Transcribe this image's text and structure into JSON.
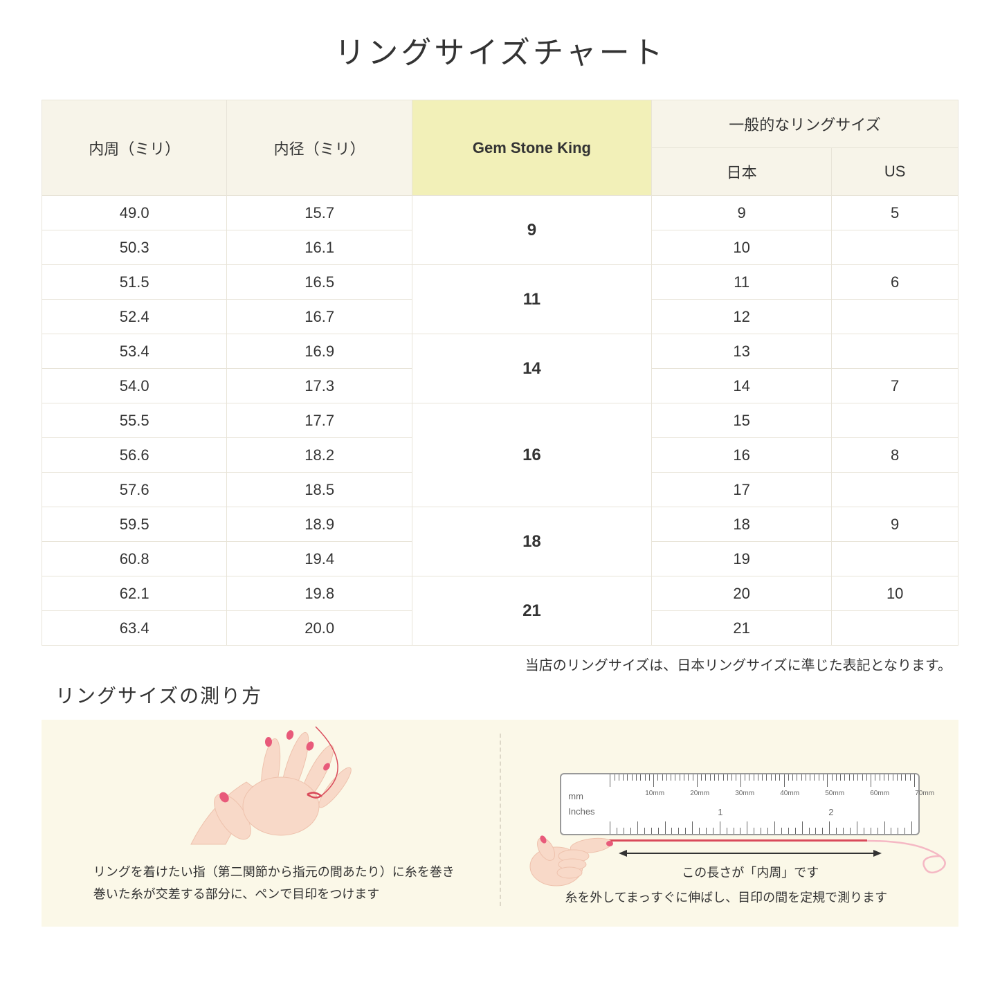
{
  "title": "リングサイズチャート",
  "headers": {
    "circumference": "内周（ミリ）",
    "diameter": "内径（ミリ）",
    "gem": "Gem Stone King",
    "general": "一般的なリングサイズ",
    "japan": "日本",
    "us": "US"
  },
  "rows": [
    {
      "c": "49.0",
      "d": "15.7",
      "jp": "9",
      "us": "5"
    },
    {
      "c": "50.3",
      "d": "16.1",
      "jp": "10",
      "us": ""
    },
    {
      "c": "51.5",
      "d": "16.5",
      "jp": "11",
      "us": "6"
    },
    {
      "c": "52.4",
      "d": "16.7",
      "jp": "12",
      "us": ""
    },
    {
      "c": "53.4",
      "d": "16.9",
      "jp": "13",
      "us": ""
    },
    {
      "c": "54.0",
      "d": "17.3",
      "jp": "14",
      "us": "7"
    },
    {
      "c": "55.5",
      "d": "17.7",
      "jp": "15",
      "us": ""
    },
    {
      "c": "56.6",
      "d": "18.2",
      "jp": "16",
      "us": "8"
    },
    {
      "c": "57.6",
      "d": "18.5",
      "jp": "17",
      "us": ""
    },
    {
      "c": "59.5",
      "d": "18.9",
      "jp": "18",
      "us": "9"
    },
    {
      "c": "60.8",
      "d": "19.4",
      "jp": "19",
      "us": ""
    },
    {
      "c": "62.1",
      "d": "19.8",
      "jp": "20",
      "us": "10"
    },
    {
      "c": "63.4",
      "d": "20.0",
      "jp": "21",
      "us": ""
    }
  ],
  "gem_groups": [
    {
      "label": "9",
      "span": 2
    },
    {
      "label": "11",
      "span": 2
    },
    {
      "label": "14",
      "span": 2
    },
    {
      "label": "16",
      "span": 3
    },
    {
      "label": "18",
      "span": 2
    },
    {
      "label": "21",
      "span": 2
    }
  ],
  "note": "当店のリングサイズは、日本リングサイズに準じた表記となります。",
  "subtitle": "リングサイズの測り方",
  "instruction_left_1": "リングを着けたい指（第二関節から指元の間あたり）に糸を巻き",
  "instruction_left_2": "巻いた糸が交差する部分に、ペンで目印をつけます",
  "arrow_label": "この長さが「内周」です",
  "instruction_right": "糸を外してまっすぐに伸ばし、目印の間を定規で測ります",
  "ruler_mm": "mm",
  "ruler_in": "Inches",
  "ruler_mm_labels": [
    "10mm",
    "20mm",
    "30mm",
    "40mm",
    "50mm",
    "60mm",
    "70mm"
  ],
  "ruler_in_labels": [
    "1",
    "2"
  ],
  "colors": {
    "header_bg": "#f7f4e9",
    "highlight_bg": "#f2f0b8",
    "border": "#e8e4d8",
    "instruction_bg": "#fbf8e8",
    "skin": "#f8d9c8",
    "skin_shadow": "#eec2ad",
    "nail": "#e85a7a",
    "thread": "#d94a5a"
  }
}
